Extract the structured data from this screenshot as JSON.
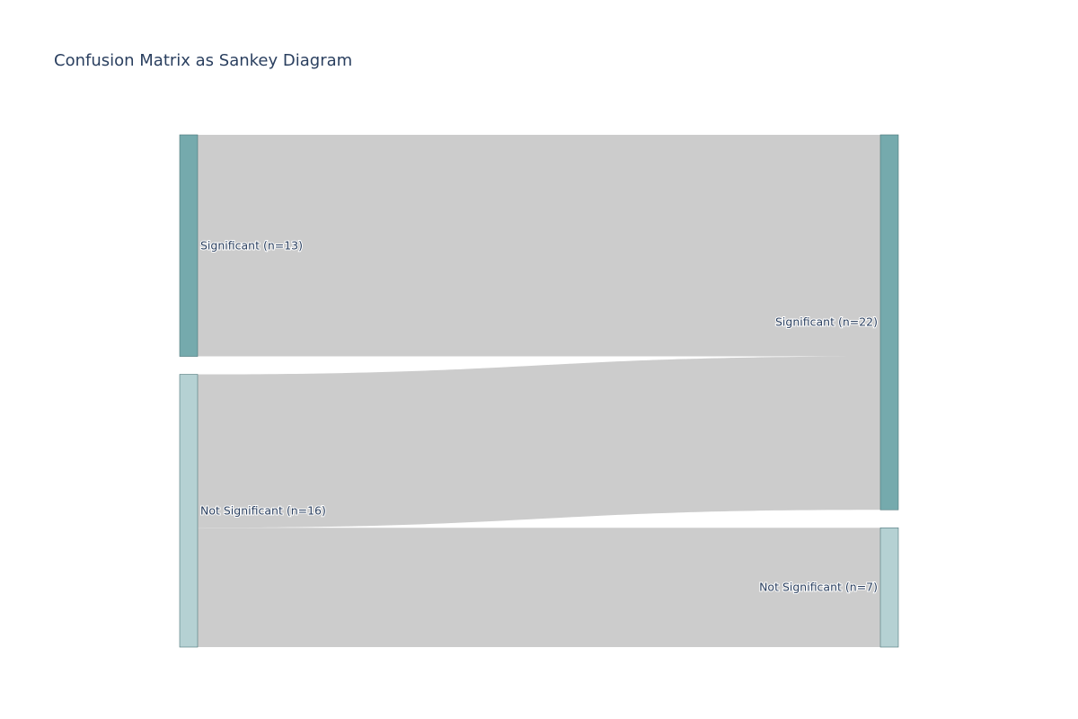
{
  "title": "Confusion Matrix as Sankey Diagram",
  "colors": {
    "node_significant": "#75aaad",
    "node_not_significant": "#b5d1d3",
    "node_border": "#4c7478",
    "link": "#cccccc",
    "text": "#2a3f5f"
  },
  "sankey": {
    "nodes": [
      {
        "id": "src_sig",
        "label": "Significant (n=13)",
        "column": 0,
        "color_key": "node_significant"
      },
      {
        "id": "src_not",
        "label": "Not Significant (n=16)",
        "column": 0,
        "color_key": "node_not_significant"
      },
      {
        "id": "dst_sig",
        "label": "Significant (n=22)",
        "column": 1,
        "color_key": "node_significant"
      },
      {
        "id": "dst_not",
        "label": "Not Significant (n=7)",
        "column": 1,
        "color_key": "node_not_significant"
      }
    ],
    "links": [
      {
        "source": "src_sig",
        "target": "dst_sig",
        "value": 13
      },
      {
        "source": "src_not",
        "target": "dst_sig",
        "value": 9
      },
      {
        "source": "src_not",
        "target": "dst_not",
        "value": 7
      }
    ]
  }
}
